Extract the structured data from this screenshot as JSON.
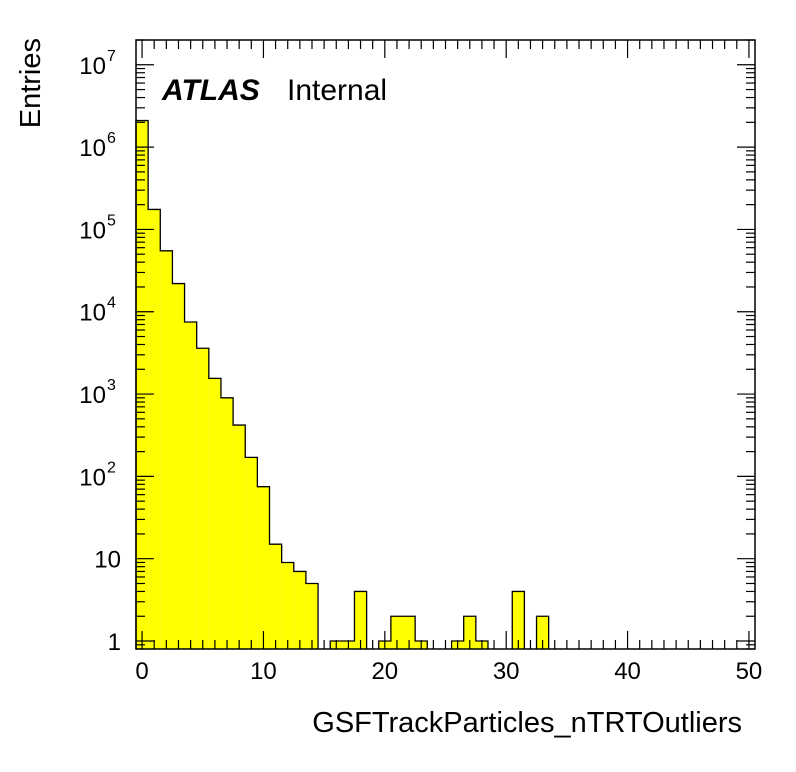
{
  "chart_data": {
    "type": "bar",
    "subtype": "histogram",
    "title": "",
    "xlabel": "GSFTrackParticles_nTRTOutliers",
    "ylabel": "Entries",
    "label_bold": "ATLAS",
    "label_normal": "Internal",
    "xlim": [
      -0.5,
      50.5
    ],
    "ylim": [
      0.8,
      20000000
    ],
    "log_y": true,
    "grid": false,
    "fill_color": "#ffff00",
    "line_color": "#000000",
    "x_tick_labels": [
      "0",
      "10",
      "20",
      "30",
      "40",
      "50"
    ],
    "y_tick_labels": [
      {
        "base": "1",
        "exp": ""
      },
      {
        "base": "10",
        "exp": ""
      },
      {
        "base": "10",
        "exp": "2"
      },
      {
        "base": "10",
        "exp": "3"
      },
      {
        "base": "10",
        "exp": "4"
      },
      {
        "base": "10",
        "exp": "5"
      },
      {
        "base": "10",
        "exp": "6"
      },
      {
        "base": "10",
        "exp": "7"
      }
    ],
    "bin_width": 1,
    "bins": [
      {
        "x": 0,
        "y": 2100000
      },
      {
        "x": 1,
        "y": 175000
      },
      {
        "x": 2,
        "y": 55000
      },
      {
        "x": 3,
        "y": 22000
      },
      {
        "x": 4,
        "y": 7500
      },
      {
        "x": 5,
        "y": 3600
      },
      {
        "x": 6,
        "y": 1550
      },
      {
        "x": 7,
        "y": 900
      },
      {
        "x": 8,
        "y": 420
      },
      {
        "x": 9,
        "y": 170
      },
      {
        "x": 10,
        "y": 75
      },
      {
        "x": 11,
        "y": 15
      },
      {
        "x": 12,
        "y": 9
      },
      {
        "x": 13,
        "y": 7
      },
      {
        "x": 14,
        "y": 5
      },
      {
        "x": 15,
        "y": 0
      },
      {
        "x": 16,
        "y": 1
      },
      {
        "x": 17,
        "y": 1
      },
      {
        "x": 18,
        "y": 4
      },
      {
        "x": 19,
        "y": 0
      },
      {
        "x": 20,
        "y": 1
      },
      {
        "x": 21,
        "y": 2
      },
      {
        "x": 22,
        "y": 2
      },
      {
        "x": 23,
        "y": 1
      },
      {
        "x": 24,
        "y": 0
      },
      {
        "x": 25,
        "y": 0
      },
      {
        "x": 26,
        "y": 1
      },
      {
        "x": 27,
        "y": 2
      },
      {
        "x": 28,
        "y": 1
      },
      {
        "x": 29,
        "y": 0
      },
      {
        "x": 30,
        "y": 0
      },
      {
        "x": 31,
        "y": 4
      },
      {
        "x": 32,
        "y": 0
      },
      {
        "x": 33,
        "y": 2
      }
    ]
  }
}
